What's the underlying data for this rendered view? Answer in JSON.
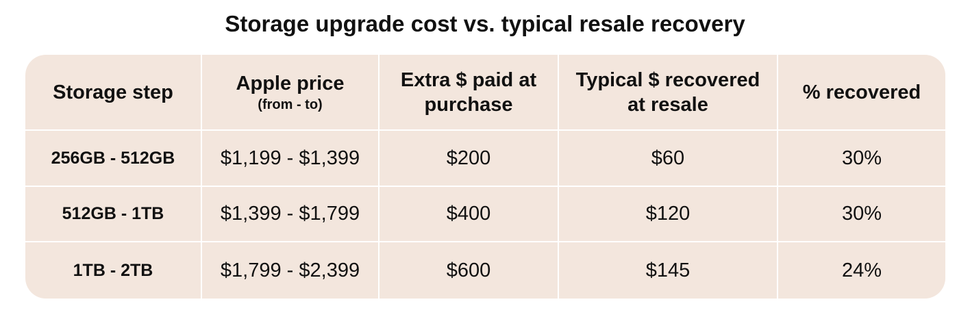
{
  "title": "Storage upgrade cost vs. typical resale recovery",
  "table": {
    "header": [
      {
        "label": "Storage step"
      },
      {
        "label": "Apple price",
        "sublabel": "(from - to)"
      },
      {
        "label": "Extra $ paid at purchase"
      },
      {
        "label": "Typical $ recovered at resale"
      },
      {
        "label": "% recovered"
      }
    ],
    "rows": [
      [
        "256GB - 512GB",
        "$1,199 - $1,399",
        "$200",
        "$60",
        "30%"
      ],
      [
        "512GB - 1TB",
        "$1,399 - $1,799",
        "$400",
        "$120",
        "30%"
      ],
      [
        "1TB - 2TB",
        "$1,799 - $2,399",
        "$600",
        "$145",
        "24%"
      ]
    ]
  }
}
